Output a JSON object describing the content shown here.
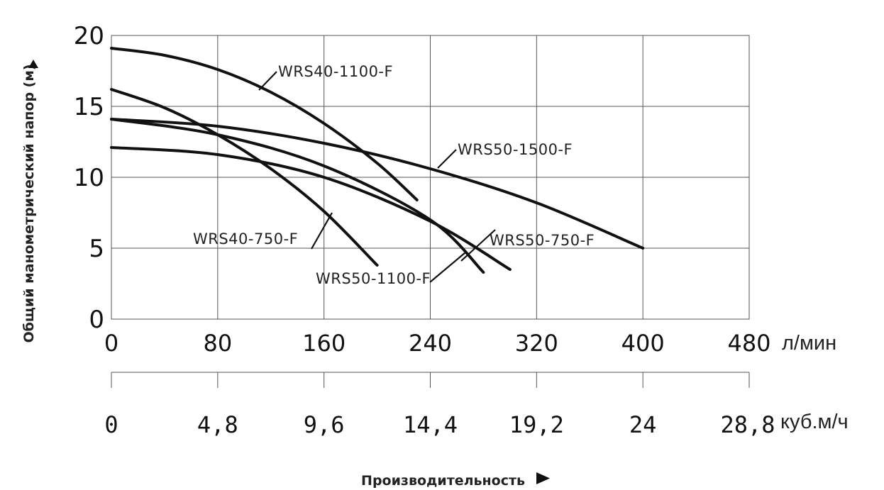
{
  "chart_data": {
    "type": "line",
    "ylabel": "Общий манометрический напор (м)",
    "xlabel": "Производительность",
    "x_unit": "л/мин",
    "x2_unit": "куб.м/ч",
    "ylim": [
      0,
      20
    ],
    "xlim": [
      0,
      480
    ],
    "y_ticks": [
      "0",
      "5",
      "10",
      "15",
      "20"
    ],
    "x_ticks": [
      "0",
      "80",
      "160",
      "240",
      "320",
      "400",
      "480"
    ],
    "x2_ticks": [
      "0",
      "4,8",
      "9,6",
      "14,4",
      "19,2",
      "24",
      "28,8"
    ],
    "grid": true,
    "series": [
      {
        "name": "WRS40-1100-F",
        "x": [
          0,
          40,
          80,
          120,
          160,
          200,
          230
        ],
        "y": [
          19.1,
          18.6,
          17.6,
          16.0,
          13.8,
          11.0,
          8.4
        ]
      },
      {
        "name": "WRS50-1500-F",
        "x": [
          0,
          80,
          160,
          240,
          320,
          400
        ],
        "y": [
          14.1,
          13.6,
          12.4,
          10.6,
          8.2,
          5.0
        ]
      },
      {
        "name": "WRS40-750-F",
        "x": [
          0,
          40,
          80,
          120,
          160,
          200
        ],
        "y": [
          16.2,
          14.9,
          13.0,
          10.6,
          7.6,
          3.8
        ]
      },
      {
        "name": "WRS50-1100-F",
        "x": [
          0,
          80,
          160,
          240,
          280
        ],
        "y": [
          14.1,
          13.0,
          10.8,
          7.0,
          3.3
        ]
      },
      {
        "name": "WRS50-750-F",
        "x": [
          0,
          80,
          160,
          240,
          300
        ],
        "y": [
          12.1,
          11.6,
          10.0,
          6.9,
          3.5
        ]
      }
    ]
  }
}
